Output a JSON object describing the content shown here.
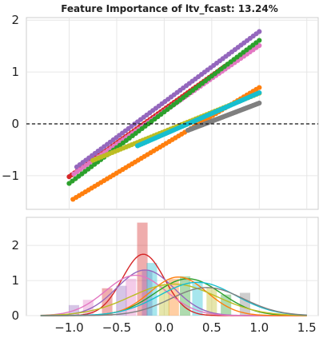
{
  "chart_data": [
    {
      "type": "scatter",
      "title": "Feature Importance of ltv_fcast: 13.24%",
      "xlabel": "",
      "ylabel": "",
      "xlim": [
        -1.45,
        1.62
      ],
      "ylim": [
        -1.65,
        2.05
      ],
      "yticks": [
        -1,
        0,
        1,
        2
      ],
      "grid": true,
      "reference_line": {
        "y": 0,
        "style": "dashed"
      },
      "series": [
        {
          "color": "#d62728",
          "x_range": [
            -1.0,
            0.7
          ],
          "slope": 1.3,
          "intercept": 0.28
        },
        {
          "color": "#9467bd",
          "x_range": [
            -0.92,
            1.0
          ],
          "slope": 1.36,
          "intercept": 0.42
        },
        {
          "color": "#e377c2",
          "x_range": [
            -0.95,
            1.0
          ],
          "slope": 1.27,
          "intercept": 0.24
        },
        {
          "color": "#2ca02c",
          "x_range": [
            -1.0,
            1.0
          ],
          "slope": 1.38,
          "intercept": 0.23
        },
        {
          "color": "#ff7f0e",
          "x_range": [
            -0.96,
            1.0
          ],
          "slope": 1.1,
          "intercept": -0.4
        },
        {
          "color": "#bcbd22",
          "x_range": [
            -0.75,
            1.0
          ],
          "slope": 0.74,
          "intercept": -0.15
        },
        {
          "color": "#17becf",
          "x_range": [
            -0.28,
            1.0
          ],
          "slope": 0.8,
          "intercept": -0.2
        },
        {
          "color": "#7f7f7f",
          "x_range": [
            0.25,
            1.0
          ],
          "slope": 0.7,
          "intercept": -0.3
        }
      ]
    },
    {
      "type": "bar",
      "subtype": "histogram-with-kde",
      "xlim": [
        -1.45,
        1.62
      ],
      "ylim": [
        0,
        2.8
      ],
      "xticks": [
        -1.0,
        -0.5,
        0.0,
        0.5,
        1.0,
        1.5
      ],
      "xtick_labels": [
        "−1.0",
        "−0.5",
        "0.0",
        "0.5",
        "1.0",
        "1.5"
      ],
      "yticks": [
        0,
        1,
        2
      ],
      "series": [
        {
          "color": "#d62728",
          "peak": -0.22,
          "width": 0.22,
          "amp": 1.75
        },
        {
          "color": "#9467bd",
          "peak": -0.2,
          "width": 0.3,
          "amp": 1.3
        },
        {
          "color": "#e377c2",
          "peak": -0.3,
          "width": 0.32,
          "amp": 1.15
        },
        {
          "color": "#2ca02c",
          "peak": 0.25,
          "width": 0.35,
          "amp": 1.05
        },
        {
          "color": "#ff7f0e",
          "peak": 0.15,
          "width": 0.3,
          "amp": 1.1
        },
        {
          "color": "#bcbd22",
          "peak": 0.1,
          "width": 0.45,
          "amp": 0.9
        },
        {
          "color": "#17becf",
          "peak": 0.35,
          "width": 0.4,
          "amp": 0.95
        },
        {
          "color": "#7f7f7f",
          "peak": 0.45,
          "width": 0.38,
          "amp": 0.8
        }
      ],
      "bars": [
        {
          "x": -0.23,
          "h": 2.65,
          "color": "#d62728"
        },
        {
          "x": -0.18,
          "h": 1.28,
          "color": "#9467bd"
        },
        {
          "x": -0.13,
          "h": 1.5,
          "color": "#17becf"
        },
        {
          "x": -0.35,
          "h": 1.05,
          "color": "#e377c2"
        },
        {
          "x": -0.6,
          "h": 0.78,
          "color": "#d62728"
        },
        {
          "x": -0.45,
          "h": 0.85,
          "color": "#9467bd"
        },
        {
          "x": 0.1,
          "h": 1.05,
          "color": "#ff7f0e"
        },
        {
          "x": 0.22,
          "h": 1.12,
          "color": "#2ca02c"
        },
        {
          "x": 0.35,
          "h": 0.95,
          "color": "#17becf"
        },
        {
          "x": 0.5,
          "h": 0.8,
          "color": "#bcbd22"
        },
        {
          "x": 0.85,
          "h": 0.65,
          "color": "#7f7f7f"
        },
        {
          "x": -0.8,
          "h": 0.45,
          "color": "#e377c2"
        },
        {
          "x": -0.95,
          "h": 0.3,
          "color": "#9467bd"
        },
        {
          "x": 0.0,
          "h": 0.9,
          "color": "#bcbd22"
        },
        {
          "x": 0.65,
          "h": 0.6,
          "color": "#2ca02c"
        }
      ]
    }
  ]
}
